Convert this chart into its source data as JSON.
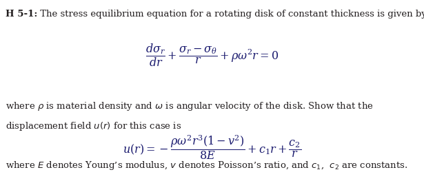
{
  "bg_color": "#ffffff",
  "text_color": "#231f20",
  "navy_color": "#1a1a6e",
  "fig_width": 6.15,
  "fig_height": 2.63,
  "dpi": 100,
  "fs_main": 9.5,
  "fs_eq": 11.5,
  "line1_bold": "H 5-1:",
  "line1_normal": " The stress equilibrium equation for a rotating disk of constant thickness is given by",
  "line2a": "where $\\rho$ is material density and $\\omega$ is angular velocity of the disk. Show that the",
  "line2b": "displacement field $u(r)$ for this case is",
  "line3": "where $E$ denotes Young’s modulus, $v$ denotes Poisson’s ratio, and $c_1$,  $c_2$ are constants."
}
